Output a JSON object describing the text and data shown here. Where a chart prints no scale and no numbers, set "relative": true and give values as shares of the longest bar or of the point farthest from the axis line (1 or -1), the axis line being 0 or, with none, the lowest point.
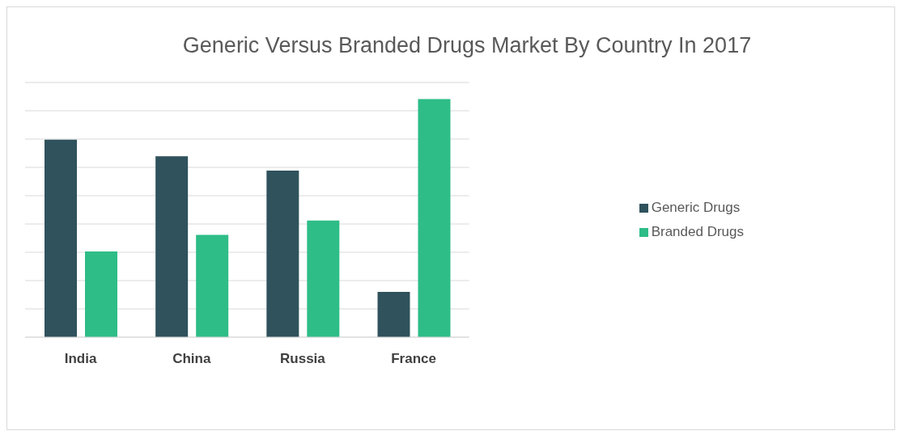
{
  "chart_data": {
    "type": "bar",
    "title": "Generic Versus Branded Drugs Market By Country In 2017",
    "categories": [
      "India",
      "China",
      "Russia",
      "France"
    ],
    "relative": true,
    "series": [
      {
        "name": "Generic Drugs",
        "color": "#2f525c",
        "values": [
          0.83,
          0.76,
          0.7,
          0.19
        ]
      },
      {
        "name": "Branded Drugs",
        "color": "#2ebd87",
        "values": [
          0.36,
          0.43,
          0.49,
          1
        ]
      }
    ],
    "grid": "y",
    "legend": "right"
  }
}
